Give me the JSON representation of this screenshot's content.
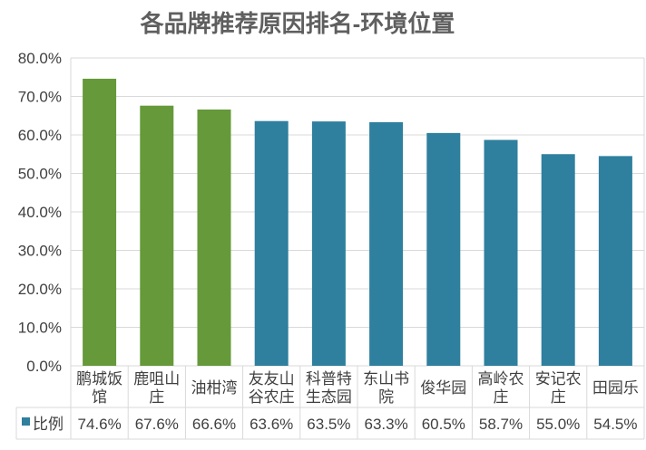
{
  "chart_data": {
    "type": "bar",
    "title": "各品牌推荐原因排名-环境位置",
    "categories": [
      [
        "鹏城饭",
        "馆"
      ],
      [
        "鹿咀山",
        "庄"
      ],
      [
        "油柑湾"
      ],
      [
        "友友山",
        "谷农庄"
      ],
      [
        "科普特",
        "生态园"
      ],
      [
        "东山书",
        "院"
      ],
      [
        "俊华园"
      ],
      [
        "高岭农",
        "庄"
      ],
      [
        "安记农",
        "庄"
      ],
      [
        "田园乐"
      ]
    ],
    "series": [
      {
        "name": "比例",
        "values": [
          74.6,
          67.6,
          66.6,
          63.6,
          63.5,
          63.3,
          60.5,
          58.7,
          55.0,
          54.5
        ],
        "labels": [
          "74.6%",
          "67.6%",
          "66.6%",
          "63.6%",
          "63.5%",
          "63.3%",
          "60.5%",
          "58.7%",
          "55.0%",
          "54.5%"
        ]
      }
    ],
    "ylim": [
      0,
      80
    ],
    "yticks": [
      "0.0%",
      "10.0%",
      "20.0%",
      "30.0%",
      "40.0%",
      "50.0%",
      "60.0%",
      "70.0%",
      "80.0%"
    ],
    "grid": true,
    "legend": "data-table",
    "colors": {
      "green": "#65993a",
      "blue": "#2f7f9e",
      "legend_key": "#2f7f9e",
      "grid": "#d9d9d9"
    },
    "bar_colors": [
      "green",
      "green",
      "green",
      "blue",
      "blue",
      "blue",
      "blue",
      "blue",
      "blue",
      "blue"
    ]
  }
}
